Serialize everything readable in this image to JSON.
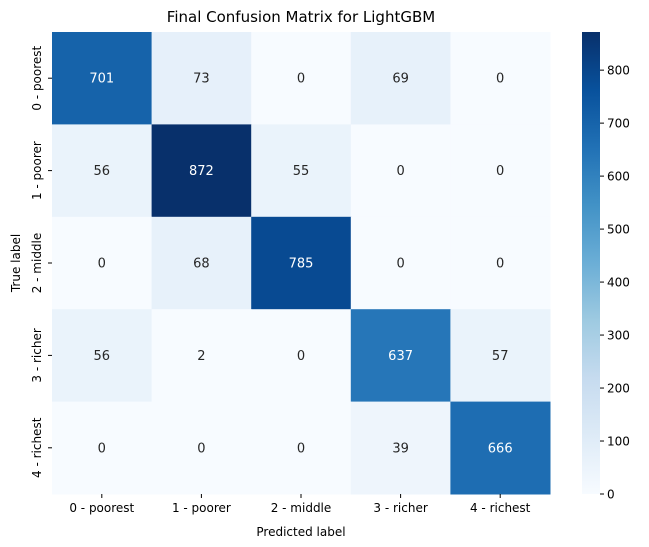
{
  "chart_data": {
    "type": "heatmap",
    "title": "Final Confusion Matrix for LightGBM",
    "xlabel": "Predicted label",
    "ylabel": "True label",
    "x_categories": [
      "0 - poorest",
      "1 - poorer",
      "2 - middle",
      "3 - richer",
      "4 - richest"
    ],
    "y_categories": [
      "0 - poorest",
      "1 - poorer",
      "2 - middle",
      "3 - richer",
      "4 - richest"
    ],
    "values": [
      [
        701,
        73,
        0,
        69,
        0
      ],
      [
        56,
        872,
        55,
        0,
        0
      ],
      [
        0,
        68,
        785,
        0,
        0
      ],
      [
        56,
        2,
        0,
        637,
        57
      ],
      [
        0,
        0,
        0,
        39,
        666
      ]
    ],
    "colorbar": {
      "min": 0,
      "max": 872,
      "ticks": [
        0,
        100,
        200,
        300,
        400,
        500,
        600,
        700,
        800
      ],
      "colormap": "Blues"
    },
    "annotations": true
  }
}
